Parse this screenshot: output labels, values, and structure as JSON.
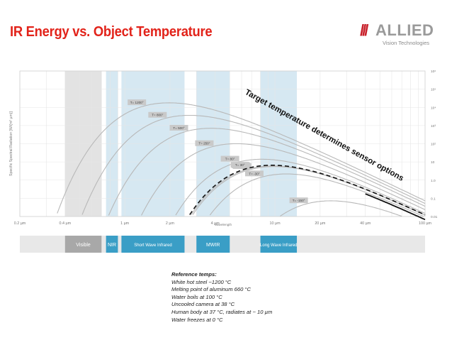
{
  "title": "IR Energy vs. Object Temperature",
  "logo": {
    "brand": "ALLIED",
    "tagline": "Vision Technologies"
  },
  "chart_data": {
    "type": "line",
    "title": "",
    "xlabel": "Wavelength",
    "ylabel": "Specific Spectral Radiation [W/(m² µm)]",
    "x_scale": "log",
    "y_scale": "log",
    "xlim": [
      0.2,
      100
    ],
    "ylim": [
      0.01,
      1000000
    ],
    "x_ticks": [
      {
        "value": 0.2,
        "label": "0.2 µm"
      },
      {
        "value": 0.4,
        "label": "0.4 µm"
      },
      {
        "value": 1,
        "label": "1 µm"
      },
      {
        "value": 2,
        "label": "2 µm"
      },
      {
        "value": 4,
        "label": "4 µm"
      },
      {
        "value": 10,
        "label": "10 µm"
      },
      {
        "value": 20,
        "label": "20 µm"
      },
      {
        "value": 40,
        "label": "40 µm"
      },
      {
        "value": 100,
        "label": "100 µm"
      }
    ],
    "y_ticks": [
      {
        "value": 1000000,
        "label": "10⁶"
      },
      {
        "value": 100000,
        "label": "10⁵"
      },
      {
        "value": 10000,
        "label": "10⁴"
      },
      {
        "value": 1000,
        "label": "10³"
      },
      {
        "value": 100,
        "label": "10²"
      },
      {
        "value": 10,
        "label": "10"
      },
      {
        "value": 1,
        "label": "1.0"
      },
      {
        "value": 0.1,
        "label": "0.1"
      },
      {
        "value": 0.01,
        "label": "0.01"
      }
    ],
    "grid": true,
    "curves": [
      {
        "label": "T= 1200°",
        "temp_c": 1200,
        "dashed": false
      },
      {
        "label": "T= 800°",
        "temp_c": 800,
        "dashed": false
      },
      {
        "label": "T= 500°",
        "temp_c": 500,
        "dashed": false
      },
      {
        "label": "T= 250°",
        "temp_c": 250,
        "dashed": false
      },
      {
        "label": "T= 80°",
        "temp_c": 80,
        "dashed": false
      },
      {
        "label": "T= 25°",
        "temp_c": 25,
        "dashed": false
      },
      {
        "label": "T= 20°",
        "temp_c": 20,
        "dashed": false
      },
      {
        "label": "T= 30°",
        "temp_c": 30,
        "dashed": true
      },
      {
        "label": "T= -30°",
        "temp_c": -30,
        "dashed": false
      },
      {
        "label": "T= -150°",
        "temp_c": -150,
        "dashed": false
      }
    ],
    "bands": [
      {
        "label": "Visible",
        "from": 0.4,
        "to": 0.7,
        "color": "#e3e3e3",
        "bar_color": "#a8a8a8"
      },
      {
        "label": "NIR",
        "from": 0.75,
        "to": 0.9,
        "color": "#d6e8f2",
        "bar_color": "#3a9ec6"
      },
      {
        "label": "Short Wave Infrared",
        "from": 0.95,
        "to": 2.5,
        "color": "#d6e8f2",
        "bar_color": "#3a9ec6"
      },
      {
        "label": "MWIR",
        "from": 3,
        "to": 5,
        "color": "#d6e8f2",
        "bar_color": "#3a9ec6"
      },
      {
        "label": "Long Wave Infrared",
        "from": 8,
        "to": 14,
        "color": "#d6e8f2",
        "bar_color": "#3a9ec6"
      }
    ],
    "annotation": "Target temperature determines sensor options"
  },
  "reference": {
    "heading": "Reference temps:",
    "lines": [
      "White hot steel ~1200 °C",
      "Melting point of aluminum 660 °C",
      "Water boils at 100 °C",
      "Uncooled camera at 38 °C",
      "Human body at 37 °C, radiates at ~ 10 µm",
      "Water freezes at 0 °C"
    ]
  }
}
